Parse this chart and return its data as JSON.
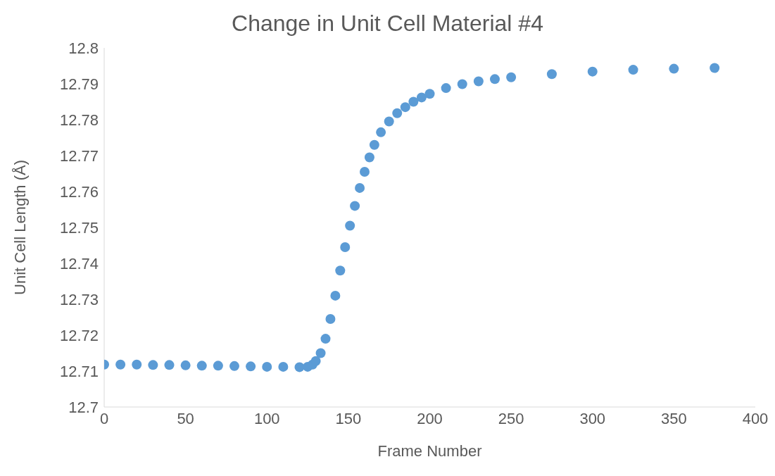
{
  "chart_data": {
    "type": "scatter",
    "title": "Change in Unit  Cell Material #4",
    "xlabel": "Frame Number",
    "ylabel": "Unit Cell Length (Å)",
    "marker": "circle",
    "xlim": [
      0,
      400
    ],
    "xticks": [
      0,
      50,
      100,
      150,
      200,
      250,
      300,
      350,
      400
    ],
    "ylim": [
      12.7,
      12.8
    ],
    "yticks": [
      12.7,
      12.71,
      12.72,
      12.73,
      12.74,
      12.75,
      12.76,
      12.77,
      12.78,
      12.79,
      12.8
    ],
    "series": [
      {
        "color": "#5b9bd5",
        "x": [
          0,
          10,
          20,
          30,
          40,
          50,
          60,
          70,
          80,
          90,
          100,
          110,
          120,
          125,
          128,
          130,
          133,
          136,
          139,
          142,
          145,
          148,
          151,
          154,
          157,
          160,
          163,
          166,
          170,
          175,
          180,
          185,
          190,
          195,
          200,
          210,
          220,
          230,
          240,
          250,
          275,
          300,
          325,
          350,
          375
        ],
        "values": [
          12.7118,
          12.7118,
          12.7118,
          12.7117,
          12.7117,
          12.7116,
          12.7115,
          12.7115,
          12.7114,
          12.7113,
          12.7112,
          12.7112,
          12.7111,
          12.7112,
          12.7118,
          12.7128,
          12.715,
          12.719,
          12.7245,
          12.731,
          12.738,
          12.7445,
          12.7505,
          12.756,
          12.761,
          12.7655,
          12.7695,
          12.773,
          12.7765,
          12.7795,
          12.7818,
          12.7835,
          12.785,
          12.7862,
          12.7872,
          12.7888,
          12.7899,
          12.7907,
          12.7913,
          12.7918,
          12.7927,
          12.7934,
          12.7939,
          12.7942,
          12.7944
        ]
      }
    ]
  }
}
